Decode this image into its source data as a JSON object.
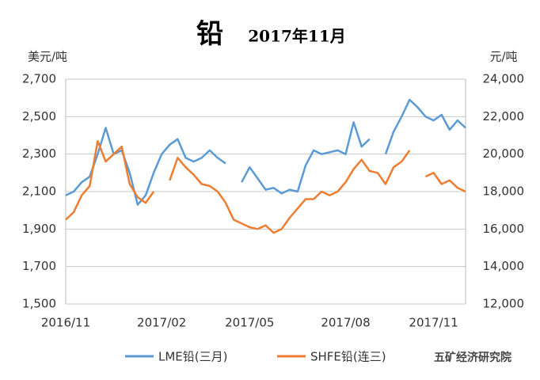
{
  "chart_data": {
    "type": "line",
    "title": "铅",
    "subtitle": "2017年11月",
    "y_label": "美元/吨",
    "y2_label": "元/吨",
    "watermark": "五矿经济研究院",
    "categories": [
      "2016/11",
      null,
      null,
      null,
      null,
      null,
      null,
      null,
      null,
      null,
      null,
      null,
      "2017/02",
      null,
      null,
      null,
      null,
      null,
      null,
      null,
      null,
      null,
      null,
      "2017/05",
      null,
      null,
      null,
      null,
      null,
      null,
      null,
      null,
      null,
      null,
      null,
      "2017/08",
      null,
      null,
      null,
      null,
      null,
      null,
      null,
      null,
      null,
      null,
      "2017/11",
      null,
      null,
      null,
      null
    ],
    "series": [
      {
        "name": "LME铅(三月)",
        "color": "#5b9bd5",
        "axis": "y",
        "values": [
          2080,
          2100,
          2150,
          2180,
          2300,
          2440,
          2300,
          2320,
          2200,
          2030,
          2080,
          2200,
          2300,
          2350,
          2380,
          2280,
          2260,
          2280,
          2320,
          2280,
          2250,
          null,
          2150,
          2230,
          2170,
          2110,
          2120,
          2090,
          2110,
          2100,
          2240,
          2320,
          2300,
          2310,
          2320,
          2300,
          2470,
          2340,
          2380,
          null,
          2300,
          2420,
          2500,
          2590,
          2550,
          2500,
          2480,
          2510,
          2430,
          2480,
          2440
        ]
      },
      {
        "name": "SHFE铅(连三)",
        "color": "#ed7d31",
        "axis": "y2",
        "values": [
          16500,
          16900,
          17800,
          18300,
          20700,
          19600,
          20000,
          20400,
          18400,
          17700,
          17400,
          18000,
          null,
          18600,
          19800,
          19300,
          18900,
          18400,
          18300,
          18000,
          17400,
          16500,
          16300,
          16100,
          16000,
          16200,
          15800,
          16000,
          16600,
          17100,
          17600,
          17600,
          18000,
          17800,
          18000,
          18500,
          19200,
          19700,
          19100,
          19000,
          18400,
          19300,
          19600,
          20200,
          null,
          18800,
          19000,
          18400,
          18600,
          18200,
          18000
        ]
      }
    ],
    "ylim": [
      1500,
      2700
    ],
    "yticks": [
      {
        "value": 1500,
        "label": "1,500"
      },
      {
        "value": 1700,
        "label": "1,700"
      },
      {
        "value": 1900,
        "label": "1,900"
      },
      {
        "value": 2100,
        "label": "2,100"
      },
      {
        "value": 2300,
        "label": "2,300"
      },
      {
        "value": 2500,
        "label": "2,500"
      },
      {
        "value": 2700,
        "label": "2,700"
      }
    ],
    "y2lim": [
      12000,
      24000
    ],
    "y2ticks": [
      {
        "value": 12000,
        "label": "12,000"
      },
      {
        "value": 14000,
        "label": "14,000"
      },
      {
        "value": 16000,
        "label": "16,000"
      },
      {
        "value": 18000,
        "label": "18,000"
      },
      {
        "value": 20000,
        "label": "20,000"
      },
      {
        "value": 22000,
        "label": "22,000"
      },
      {
        "value": 24000,
        "label": "24,000"
      }
    ],
    "grid": true
  }
}
